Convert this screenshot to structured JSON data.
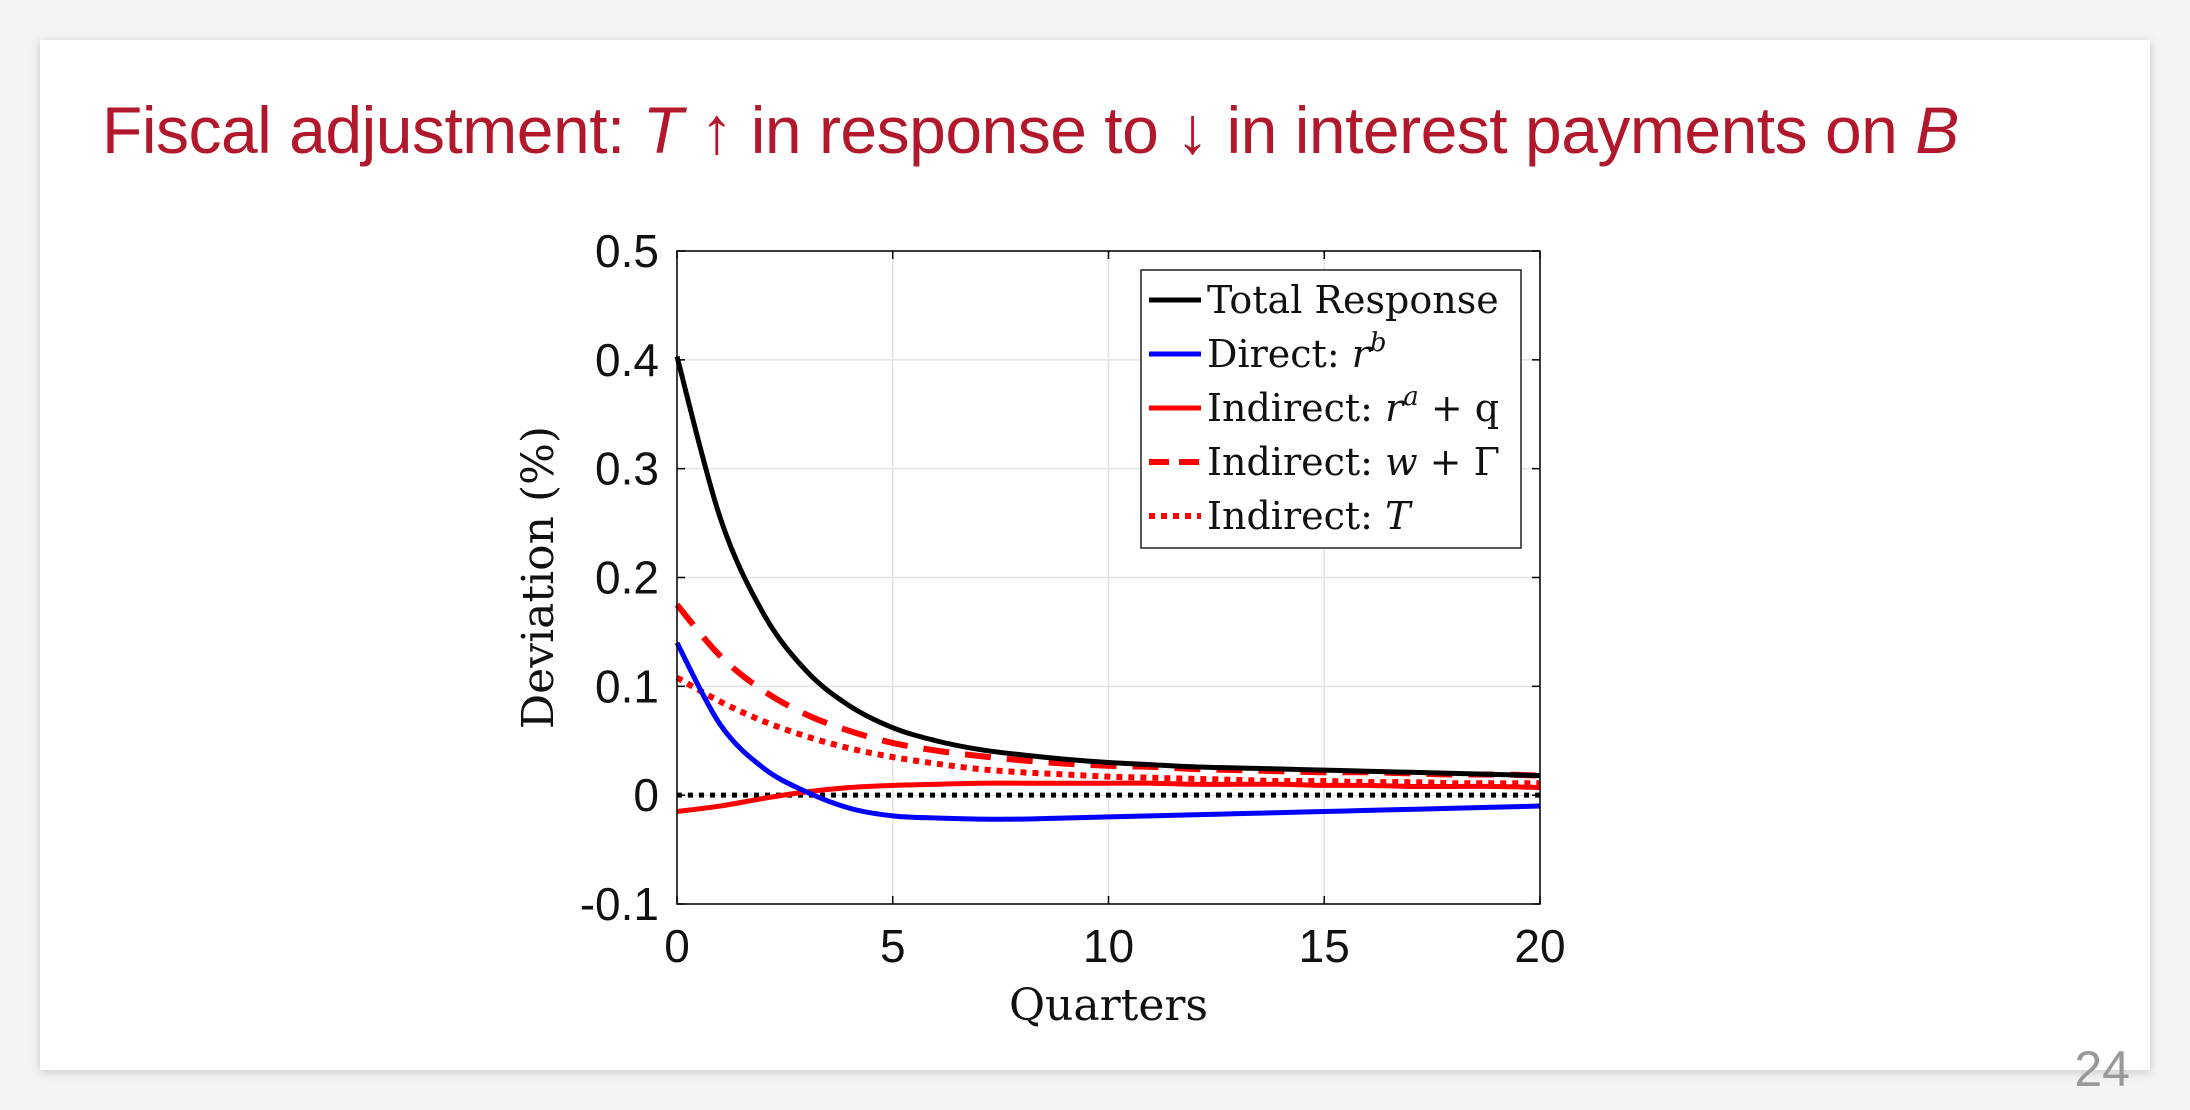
{
  "slide": {
    "title_prefix": "Fiscal adjustment: ",
    "title_T": "T",
    "title_up": " ↑ ",
    "title_mid": "in response to ",
    "title_down": "↓",
    "title_rest": " in interest payments on ",
    "title_B": "B",
    "page_number": "24"
  },
  "colors": {
    "title": "#b2182b",
    "total": "#000000",
    "direct": "#0000ff",
    "indirect": "#ff0000"
  },
  "chart_data": {
    "type": "line",
    "title": "",
    "xlabel": "Quarters",
    "ylabel": "Deviation (%)",
    "xlim": [
      0,
      20
    ],
    "ylim": [
      -0.1,
      0.5
    ],
    "xticks": [
      0,
      5,
      10,
      15,
      20
    ],
    "xtick_labels": [
      "0",
      "5",
      "10",
      "15",
      "20"
    ],
    "yticks": [
      -0.1,
      0,
      0.1,
      0.2,
      0.3,
      0.4,
      0.5
    ],
    "ytick_labels": [
      "-0.1",
      "0",
      "0.1",
      "0.2",
      "0.3",
      "0.4",
      "0.5"
    ],
    "grid": true,
    "legend_position": "top-right",
    "x": [
      0,
      1,
      2,
      3,
      4,
      5,
      6,
      7,
      8,
      9,
      10,
      11,
      12,
      13,
      14,
      15,
      16,
      17,
      18,
      19,
      20
    ],
    "series": [
      {
        "name": "Total Response",
        "color": "#000000",
        "style": "solid",
        "values": [
          0.403,
          0.255,
          0.167,
          0.114,
          0.082,
          0.062,
          0.05,
          0.042,
          0.037,
          0.033,
          0.03,
          0.028,
          0.026,
          0.025,
          0.024,
          0.023,
          0.022,
          0.021,
          0.02,
          0.019,
          0.018
        ]
      },
      {
        "name": "Direct: r^b",
        "color": "#0000ff",
        "style": "solid",
        "values": [
          0.14,
          0.065,
          0.025,
          0.003,
          -0.012,
          -0.019,
          -0.021,
          -0.022,
          -0.022,
          -0.021,
          -0.02,
          -0.019,
          -0.018,
          -0.017,
          -0.016,
          -0.015,
          -0.014,
          -0.013,
          -0.012,
          -0.011,
          -0.01
        ]
      },
      {
        "name": "Indirect: r^a + q",
        "color": "#ff0000",
        "style": "solid",
        "values": [
          -0.015,
          -0.01,
          -0.003,
          0.003,
          0.007,
          0.009,
          0.01,
          0.011,
          0.011,
          0.011,
          0.011,
          0.011,
          0.01,
          0.01,
          0.01,
          0.009,
          0.009,
          0.008,
          0.008,
          0.008,
          0.007
        ]
      },
      {
        "name": "Indirect: w + Γ",
        "color": "#ff0000",
        "style": "dashed",
        "values": [
          0.175,
          0.128,
          0.096,
          0.074,
          0.059,
          0.048,
          0.041,
          0.036,
          0.032,
          0.029,
          0.027,
          0.026,
          0.024,
          0.023,
          0.022,
          0.021,
          0.021,
          0.02,
          0.019,
          0.019,
          0.018
        ]
      },
      {
        "name": "Indirect: T",
        "color": "#ff0000",
        "style": "dotted",
        "values": [
          0.108,
          0.086,
          0.068,
          0.054,
          0.043,
          0.035,
          0.029,
          0.024,
          0.021,
          0.019,
          0.017,
          0.016,
          0.015,
          0.014,
          0.013,
          0.013,
          0.012,
          0.012,
          0.011,
          0.011,
          0.011
        ]
      },
      {
        "name": "",
        "color": "#000000",
        "style": "dotted-zero",
        "values": [
          0,
          0,
          0,
          0,
          0,
          0,
          0,
          0,
          0,
          0,
          0,
          0,
          0,
          0,
          0,
          0,
          0,
          0,
          0,
          0,
          0
        ]
      }
    ],
    "legend": [
      {
        "base": "Total Response",
        "math": "",
        "sup": "",
        "post": ""
      },
      {
        "base": "Direct: ",
        "math": "r",
        "sup": "b",
        "post": ""
      },
      {
        "base": "Indirect: ",
        "math": "r",
        "sup": "a",
        "post": " + q"
      },
      {
        "base": "Indirect: ",
        "math": "w",
        "sup": "",
        "post": " + Γ"
      },
      {
        "base": "Indirect: ",
        "math": "T",
        "sup": "",
        "post": ""
      }
    ]
  }
}
